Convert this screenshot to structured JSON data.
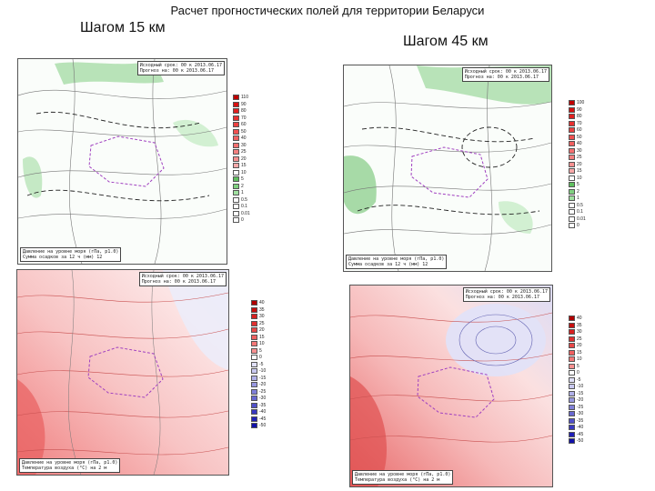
{
  "title": "Расчет прогностических полей для территории Беларуси",
  "left_heading": "Шагом 15 км",
  "right_heading": "Шагом 45 км",
  "maps": [
    {
      "id": "precip-15",
      "info_top": [
        "Исходный срок: 00 к 2013.06.17",
        "Прогноз на: 00 к 2013.06.17"
      ],
      "info_bottom": [
        "Давление на уровне моря (гПа, р1.0)",
        "Сумма осадков за 12 ч (мм) 12"
      ],
      "legend_labels": [
        "110",
        "90",
        "80",
        "70",
        "60",
        "50",
        "40",
        "30",
        "25",
        "20",
        "15",
        "10",
        "5",
        "2",
        "1",
        "0.5",
        "0.1",
        "0.01",
        "0"
      ],
      "legend_colors": [
        "#c00000",
        "#d81010",
        "#e02020",
        "#e83030",
        "#ec4040",
        "#f05050",
        "#f06060",
        "#f47070",
        "#f48080",
        "#f89090",
        "#f8a8a8",
        "#ffffff",
        "#60c060",
        "#80d080",
        "#a0e0a0",
        "#ffffff",
        "#ffffff",
        "#ffffff",
        "#ffffff"
      ]
    },
    {
      "id": "precip-45",
      "info_top": [
        "Исходный срок: 00 к 2013.06.17",
        "Прогноз на: 00 к 2013.06.17"
      ],
      "info_bottom": [
        "Давление на уровне моря (гПа, р1.0)",
        "Сумма осадков за 12 ч (мм) 12"
      ],
      "legend_labels": [
        "100",
        "90",
        "80",
        "70",
        "60",
        "50",
        "40",
        "30",
        "25",
        "20",
        "15",
        "10",
        "5",
        "2",
        "1",
        "0.5",
        "0.1",
        "0.01",
        "0"
      ],
      "legend_colors": [
        "#c00000",
        "#d81010",
        "#e02020",
        "#e83030",
        "#ec4040",
        "#f05050",
        "#f06060",
        "#f47070",
        "#f48080",
        "#f89090",
        "#f8a8a8",
        "#ffffff",
        "#60c060",
        "#80d080",
        "#a0e0a0",
        "#ffffff",
        "#ffffff",
        "#ffffff",
        "#ffffff"
      ]
    },
    {
      "id": "temp-15",
      "info_top": [
        "Исходный срок: 00 к 2013.06.17",
        "Прогноз на: 00 к 2013.06.17"
      ],
      "info_bottom": [
        "Давление на уровне моря (гПа, р1.0)",
        "Температура воздуха (°С) на 2 м"
      ],
      "legend_labels": [
        "40",
        "35",
        "30",
        "25",
        "20",
        "15",
        "10",
        "5",
        "0",
        "-5",
        "-10",
        "-15",
        "-20",
        "-25",
        "-30",
        "-35",
        "-40",
        "-45",
        "-50"
      ],
      "legend_colors": [
        "#b00000",
        "#c81010",
        "#d82020",
        "#e03030",
        "#e84848",
        "#f06060",
        "#f47878",
        "#f89090",
        "#ffffff",
        "#e0e0f8",
        "#c8c8f0",
        "#b0b0e8",
        "#9898e0",
        "#8080d8",
        "#6868d0",
        "#5050c8",
        "#3838c0",
        "#2020b8",
        "#1010a8"
      ]
    },
    {
      "id": "temp-45",
      "info_top": [
        "Исходный срок: 00 к 2013.06.17",
        "Прогноз на: 00 к 2013.06.17"
      ],
      "info_bottom": [
        "Давление на уровне моря (гПа, р1.0)",
        "Температура воздуха (°С) на 2 м"
      ],
      "legend_labels": [
        "40",
        "35",
        "30",
        "25",
        "20",
        "15",
        "10",
        "5",
        "0",
        "-5",
        "-10",
        "-15",
        "-20",
        "-25",
        "-30",
        "-35",
        "-40",
        "-45",
        "-50"
      ],
      "legend_colors": [
        "#b00000",
        "#c81010",
        "#d82020",
        "#e03030",
        "#e84848",
        "#f06060",
        "#f47878",
        "#f89090",
        "#ffffff",
        "#e0e0f8",
        "#c8c8f0",
        "#b0b0e8",
        "#9898e0",
        "#8080d8",
        "#6868d0",
        "#5050c8",
        "#3838c0",
        "#2020b8",
        "#1010a8"
      ]
    }
  ]
}
